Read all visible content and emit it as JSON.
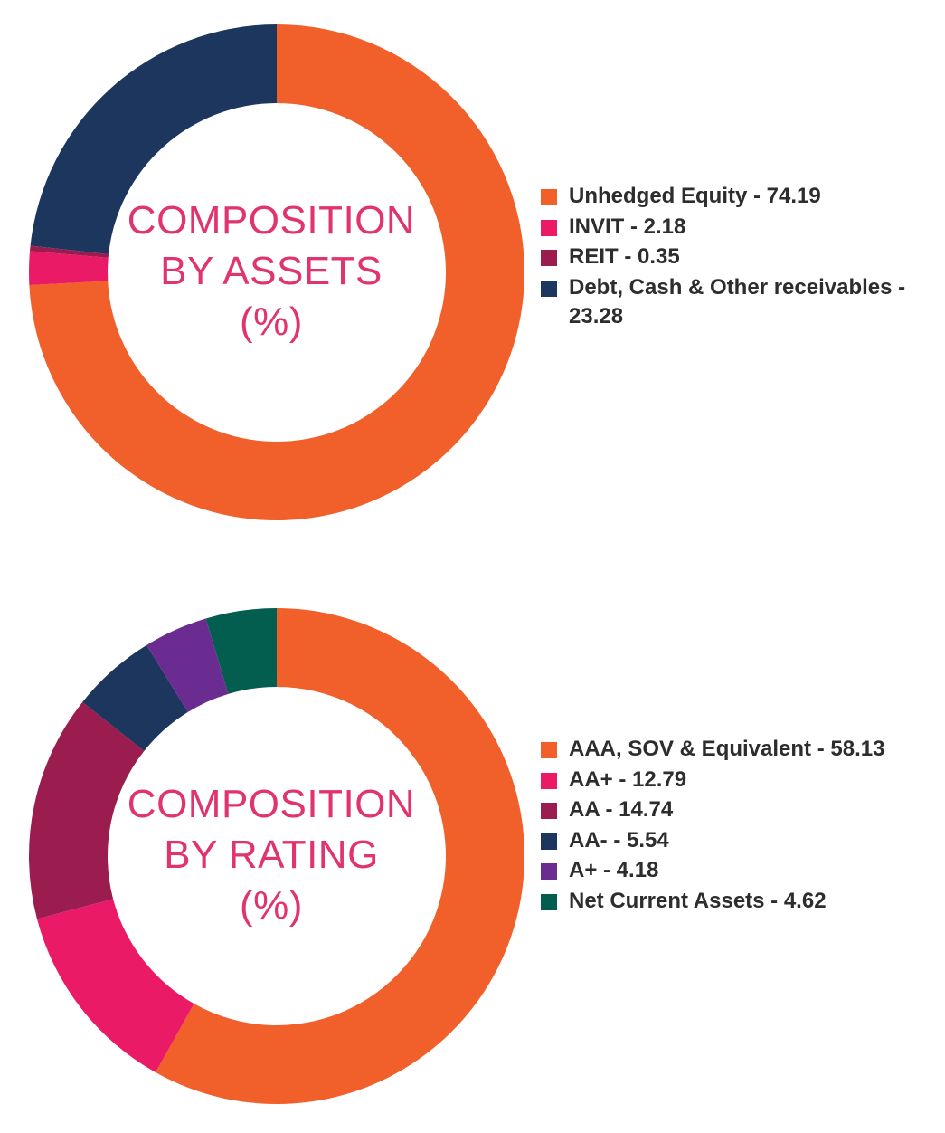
{
  "chart_data": [
    {
      "type": "pie",
      "title_lines": [
        "COMPOSITION",
        "BY ASSETS",
        "(%)"
      ],
      "legend_position": "right",
      "slices": [
        {
          "label": "Unhedged Equity - 74.19",
          "value": 74.19,
          "color": "#f15f2a"
        },
        {
          "label": "INVIT - 2.18",
          "value": 2.18,
          "color": "#eb1a67"
        },
        {
          "label": "REIT - 0.35",
          "value": 0.35,
          "color": "#9b1d4f"
        },
        {
          "label": "Debt, Cash & Other receivables - 23.28",
          "value": 23.28,
          "color": "#1c365e"
        }
      ]
    },
    {
      "type": "pie",
      "title_lines": [
        "COMPOSITION",
        "BY RATING",
        "(%)"
      ],
      "legend_position": "right",
      "slices": [
        {
          "label": "AAA, SOV & Equivalent - 58.13",
          "value": 58.13,
          "color": "#f15f2a"
        },
        {
          "label": "AA+ - 12.79",
          "value": 12.79,
          "color": "#eb1a67"
        },
        {
          "label": "AA - 14.74",
          "value": 14.74,
          "color": "#9b1d4f"
        },
        {
          "label": "AA- - 5.54",
          "value": 5.54,
          "color": "#1c365e"
        },
        {
          "label": "A+ - 4.18",
          "value": 4.18,
          "color": "#6b2c91"
        },
        {
          "label": "Net Current Assets - 4.62",
          "value": 4.62,
          "color": "#045e4f"
        }
      ]
    }
  ]
}
